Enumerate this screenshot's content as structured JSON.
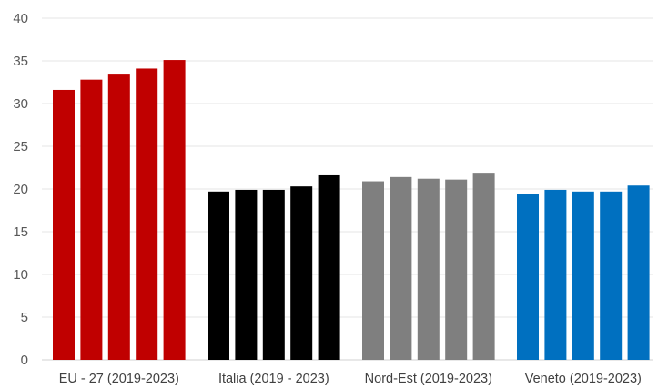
{
  "chart_data": {
    "type": "bar",
    "title": "",
    "xlabel": "",
    "ylabel": "",
    "ylim": [
      0,
      40
    ],
    "yticks": [
      0,
      5,
      10,
      15,
      20,
      25,
      30,
      35,
      40
    ],
    "grid": true,
    "legend": "none",
    "groups": [
      {
        "label": "EU - 27 (2019-2023)",
        "color": "#c00000",
        "values": [
          31.6,
          32.8,
          33.5,
          34.1,
          35.1
        ]
      },
      {
        "label": "Italia (2019 - 2023)",
        "color": "#000000",
        "values": [
          19.7,
          19.9,
          19.9,
          20.3,
          21.6
        ]
      },
      {
        "label": "Nord-Est (2019-2023)",
        "color": "#7f7f7f",
        "values": [
          20.9,
          21.4,
          21.2,
          21.1,
          21.9
        ]
      },
      {
        "label": "Veneto (2019-2023)",
        "color": "#0070c0",
        "values": [
          19.4,
          19.9,
          19.7,
          19.7,
          20.4
        ]
      }
    ]
  }
}
